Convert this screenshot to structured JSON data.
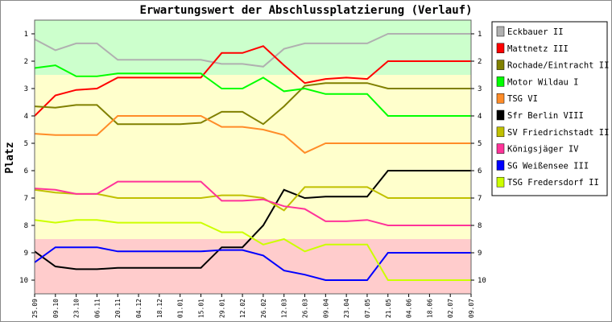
{
  "chart_data": {
    "type": "line",
    "title": "Erwartungswert der Abschlussplatzierung (Verlauf)",
    "ylabel": "Platz",
    "xlabel": "",
    "ylim": [
      10.5,
      0.5
    ],
    "y_ticks": [
      "1",
      "2",
      "3",
      "4",
      "5",
      "6",
      "7",
      "8",
      "9",
      "10"
    ],
    "categories": [
      "25.09",
      "09.10",
      "23.10",
      "06.11",
      "20.11",
      "04.12",
      "18.12",
      "01.01",
      "15.01",
      "29.01",
      "12.02",
      "26.02",
      "12.03",
      "26.03",
      "09.04",
      "23.04",
      "07.05",
      "21.05",
      "04.06",
      "18.06",
      "02.07",
      "09.07"
    ],
    "zones": [
      {
        "from": 0.5,
        "to": 2.5,
        "color": "#ccffcc"
      },
      {
        "from": 2.5,
        "to": 8.5,
        "color": "#ffffcc"
      },
      {
        "from": 8.5,
        "to": 10.5,
        "color": "#ffcccc"
      }
    ],
    "series": [
      {
        "name": "Eckbauer II",
        "color": "#b0b0b0",
        "values": [
          1.2,
          1.6,
          1.35,
          1.35,
          1.95,
          1.95,
          1.95,
          1.95,
          1.95,
          2.1,
          2.1,
          2.2,
          1.55,
          1.35,
          1.35,
          1.35,
          1.35,
          1.0,
          1.0,
          1.0,
          1.0,
          1.0
        ]
      },
      {
        "name": "Mattnetz III",
        "color": "#ff0000",
        "values": [
          4.0,
          3.25,
          3.05,
          3.0,
          2.6,
          2.6,
          2.6,
          2.6,
          2.6,
          1.7,
          1.7,
          1.45,
          2.15,
          2.8,
          2.65,
          2.6,
          2.65,
          2.0,
          2.0,
          2.0,
          2.0,
          2.0
        ]
      },
      {
        "name": "Rochade/Eintracht II",
        "color": "#808000",
        "values": [
          3.65,
          3.7,
          3.6,
          3.6,
          4.3,
          4.3,
          4.3,
          4.3,
          4.25,
          3.85,
          3.85,
          4.3,
          3.65,
          2.9,
          2.8,
          2.8,
          2.8,
          3.0,
          3.0,
          3.0,
          3.0,
          3.0
        ]
      },
      {
        "name": "Motor Wildau I",
        "color": "#00ff00",
        "values": [
          2.25,
          2.15,
          2.55,
          2.55,
          2.45,
          2.45,
          2.45,
          2.45,
          2.45,
          3.0,
          3.0,
          2.6,
          3.1,
          3.0,
          3.2,
          3.2,
          3.2,
          4.0,
          4.0,
          4.0,
          4.0,
          4.0
        ]
      },
      {
        "name": "TSG VI",
        "color": "#ff8c28",
        "values": [
          4.65,
          4.7,
          4.7,
          4.7,
          4.0,
          4.0,
          4.0,
          4.0,
          4.0,
          4.4,
          4.4,
          4.5,
          4.7,
          5.35,
          5.0,
          5.0,
          5.0,
          5.0,
          5.0,
          5.0,
          5.0,
          5.0
        ]
      },
      {
        "name": "Sfr Berlin VIII",
        "color": "#000000",
        "values": [
          8.95,
          9.5,
          9.6,
          9.6,
          9.55,
          9.55,
          9.55,
          9.55,
          9.55,
          8.8,
          8.8,
          8.0,
          6.7,
          7.0,
          6.95,
          6.95,
          6.95,
          6.0,
          6.0,
          6.0,
          6.0,
          6.0
        ]
      },
      {
        "name": "SV Friedrichstadt II",
        "color": "#c0c000",
        "values": [
          6.7,
          6.8,
          6.85,
          6.85,
          7.0,
          7.0,
          7.0,
          7.0,
          7.0,
          6.9,
          6.9,
          7.0,
          7.45,
          6.6,
          6.6,
          6.6,
          6.6,
          7.0,
          7.0,
          7.0,
          7.0,
          7.0
        ]
      },
      {
        "name": "Königsjäger IV",
        "color": "#ff3399",
        "values": [
          6.65,
          6.7,
          6.85,
          6.85,
          6.4,
          6.4,
          6.4,
          6.4,
          6.4,
          7.1,
          7.1,
          7.05,
          7.3,
          7.4,
          7.85,
          7.85,
          7.8,
          8.0,
          8.0,
          8.0,
          8.0,
          8.0
        ]
      },
      {
        "name": "SG Weißensee III",
        "color": "#0000ff",
        "values": [
          9.35,
          8.8,
          8.8,
          8.8,
          8.95,
          8.95,
          8.95,
          8.95,
          8.95,
          8.9,
          8.9,
          9.1,
          9.65,
          9.8,
          10.0,
          10.0,
          10.0,
          9.0,
          9.0,
          9.0,
          9.0,
          9.0
        ]
      },
      {
        "name": "TSG Fredersdorf II",
        "color": "#ccff00",
        "values": [
          7.8,
          7.9,
          7.8,
          7.8,
          7.9,
          7.9,
          7.9,
          7.9,
          7.9,
          8.25,
          8.25,
          8.7,
          8.5,
          8.95,
          8.7,
          8.7,
          8.7,
          10.0,
          10.0,
          10.0,
          10.0,
          10.0
        ]
      }
    ],
    "legend_position": "right",
    "grid": false
  }
}
